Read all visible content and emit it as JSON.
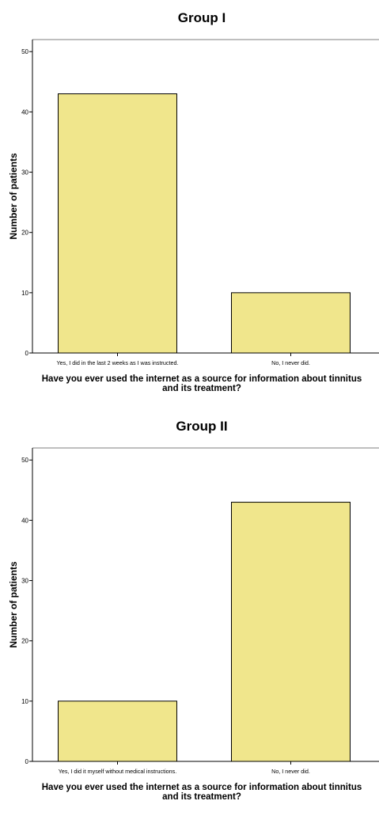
{
  "chart_data": [
    {
      "type": "bar",
      "title": "Group I",
      "ylabel": "Number of patients",
      "xlabel": [
        "Have you ever used the internet as a source for information about tinnitus",
        "and its treatment?"
      ],
      "categories": [
        "Yes, I did in the last 2 weeks as I was instructed.",
        "No, I never did."
      ],
      "values": [
        43,
        10
      ],
      "ylim": [
        0,
        52
      ],
      "yticks": [
        "0",
        "10",
        "20",
        "30",
        "40",
        "50"
      ],
      "bar_color": "#f0e68c",
      "grid": false
    },
    {
      "type": "bar",
      "title": "Group II",
      "ylabel": "Number of patients",
      "xlabel": [
        "Have you ever used the internet as a source for information about tinnitus",
        "and its treatment?"
      ],
      "categories": [
        "Yes, I did it myself without medical instructions.",
        "No, I never did."
      ],
      "values": [
        10,
        43
      ],
      "ylim": [
        0,
        52
      ],
      "yticks": [
        "0",
        "10",
        "20",
        "30",
        "40",
        "50"
      ],
      "bar_color": "#f0e68c",
      "grid": false
    }
  ]
}
